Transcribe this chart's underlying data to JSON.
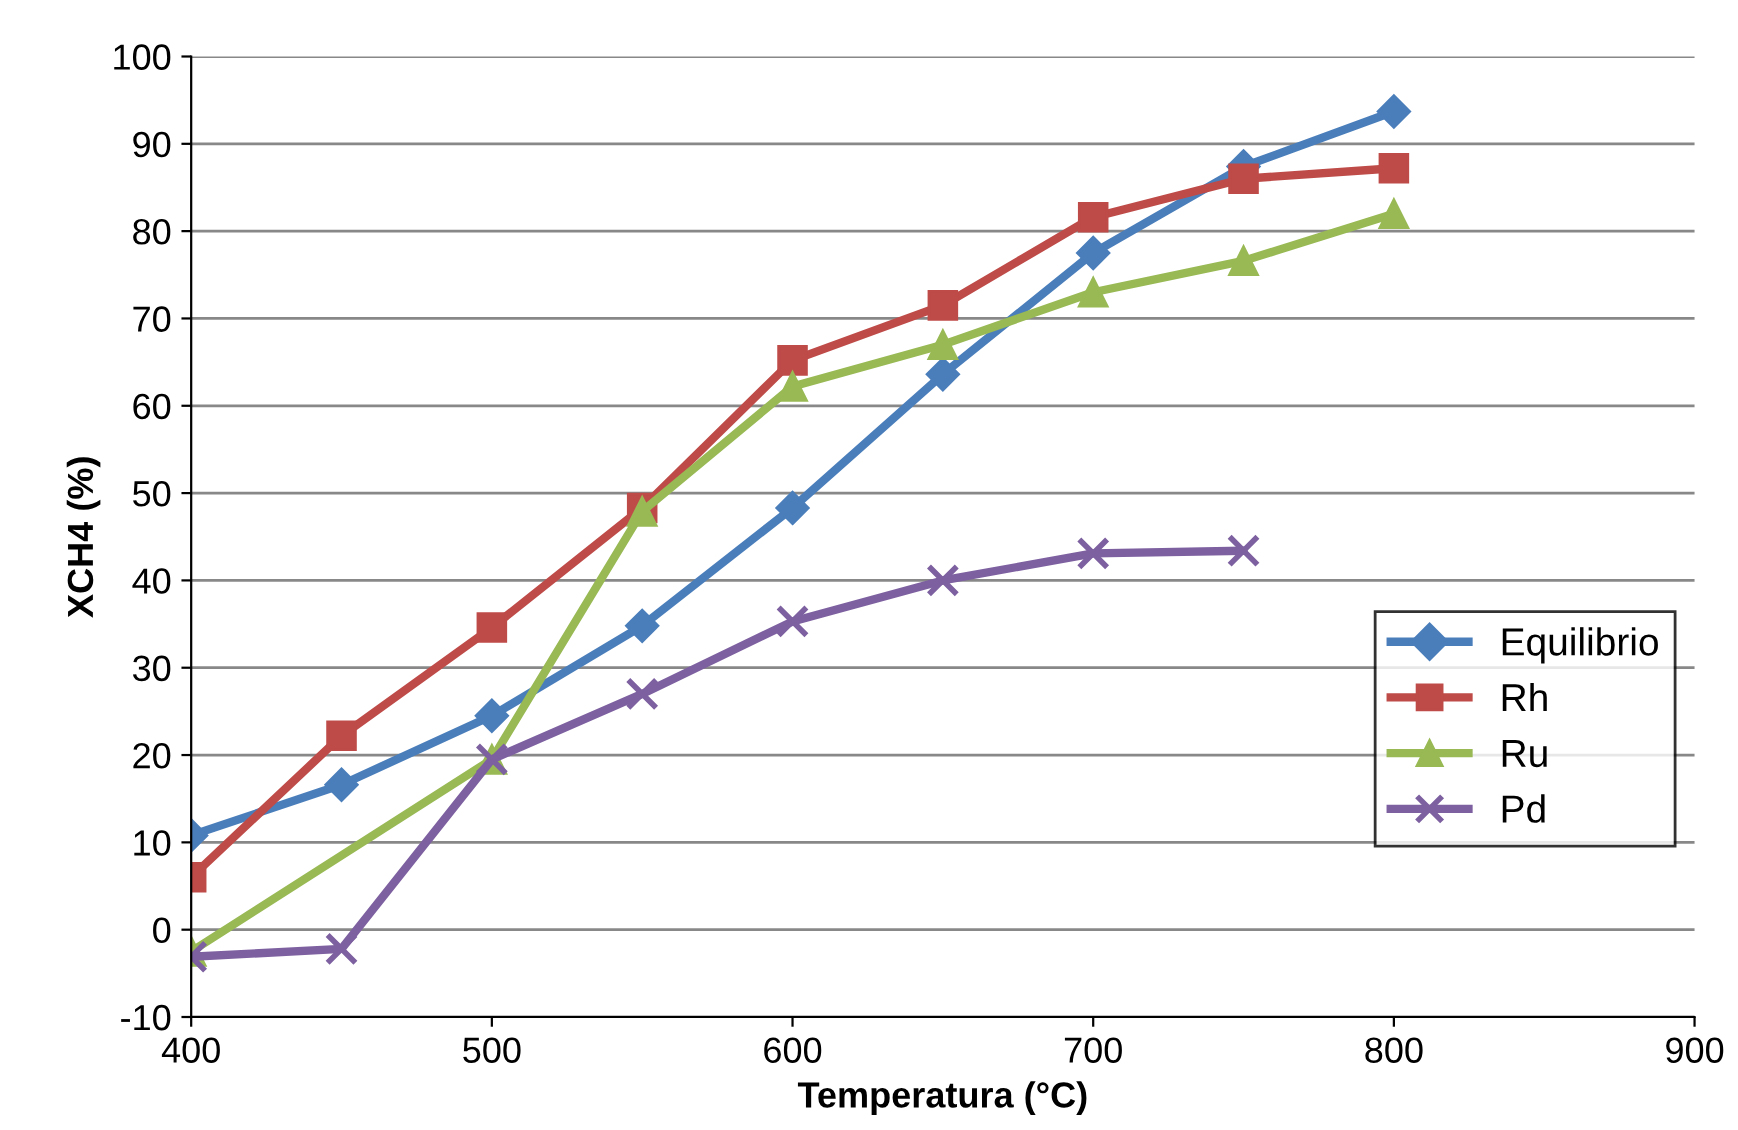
{
  "chart_data": {
    "type": "line",
    "xlabel": "Temperatura (°C)",
    "ylabel": "XCH4 (%)",
    "xlim": [
      400,
      900
    ],
    "xticks": [
      400,
      500,
      600,
      700,
      800,
      900
    ],
    "ylim": [
      -10,
      100
    ],
    "yticks": [
      -10,
      0,
      10,
      20,
      30,
      40,
      50,
      60,
      70,
      80,
      90,
      100
    ],
    "grid": "y",
    "legend": "right",
    "line_style": "solid",
    "series": [
      {
        "name": "Equilibrio",
        "color": "#4a7ebb",
        "marker": "diamond",
        "x": [
          400,
          450,
          500,
          550,
          600,
          650,
          700,
          750,
          800
        ],
        "values": [
          10.8,
          16.6,
          24.5,
          34.8,
          48.3,
          63.6,
          77.5,
          87.4,
          93.7
        ]
      },
      {
        "name": "Rh",
        "color": "#be4b48",
        "marker": "square",
        "x": [
          400,
          450,
          500,
          550,
          600,
          650,
          700,
          750,
          800
        ],
        "values": [
          6,
          22.2,
          34.6,
          48.3,
          65.2,
          71.5,
          81.6,
          86,
          87.2
        ]
      },
      {
        "name": "Ru",
        "color": "#98b954",
        "marker": "triangle",
        "x": [
          400,
          500,
          550,
          600,
          650,
          700,
          750,
          800
        ],
        "values": [
          -2.5,
          19.5,
          47.9,
          62.2,
          67,
          73,
          76.6,
          82
        ]
      },
      {
        "name": "Pd",
        "color": "#7d60a0",
        "marker": "cross",
        "x": [
          400,
          450,
          500,
          550,
          600,
          650,
          700,
          750
        ],
        "values": [
          -3.1,
          -2.2,
          19.5,
          27,
          35.3,
          40,
          43.1,
          43.4
        ]
      }
    ]
  }
}
